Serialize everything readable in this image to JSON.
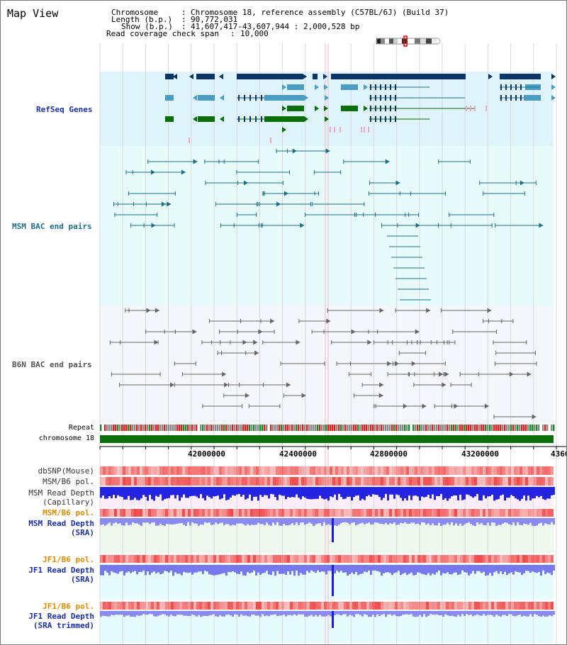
{
  "app": {
    "title": "Map View"
  },
  "header": {
    "chromosome_label": "Chromosome",
    "chromosome_value": "Chromosome 18, reference assembly (C57BL/6J) (Build 37)",
    "length_label": "Length (b.p.)",
    "length_value": "90,772,031",
    "show_label": "Show (b.p.)",
    "show_value": "41,607,417-43,607,944 : 2,000,528 bp",
    "coverage_label": "Read coverage check span",
    "coverage_value": "10,000"
  },
  "tracks": {
    "refseq": "RefSeq Genes",
    "msm_bac": "MSM BAC end pairs",
    "b6n_bac": "B6N BAC end pairs",
    "repeat": "Repeat",
    "chromosome": "chromosome 18",
    "dbsnp": "dbSNP(Mouse)",
    "msm_b6_pol_1": "MSM/B6 pol.",
    "msm_depth_cap_1": "MSM Read Depth",
    "msm_depth_cap_2": "(Capillary)",
    "msm_b6_pol_2": "MSM/B6 pol.",
    "msm_depth_sra_1": "MSM Read Depth",
    "msm_depth_sra_2": "(SRA)",
    "jf1_pol_1": "JF1/B6 pol.",
    "jf1_depth_sra_1": "JF1 Read Depth",
    "jf1_depth_sra_2": "(SRA)",
    "jf1_pol_2": "JF1/B6 pol.",
    "jf1_depth_trim_1": "JF1 Read Depth",
    "jf1_depth_trim_2": "(SRA trimmed)"
  },
  "axis": {
    "ticks": [
      "42000000",
      "42400000",
      "42800000",
      "43200000",
      "4360"
    ]
  },
  "colors": {
    "refseq_bg": "#dff3fb",
    "msm_bg": "#e8fbfb",
    "b6n_bg": "#f4f7fb",
    "gene_dark": "#0c3566",
    "gene_mid": "#4b9cc3",
    "gene_green": "#0a6e0a",
    "bac_teal": "#1b6f87",
    "bac_gray": "#666666",
    "chromosome_green": "#0a6e0a",
    "label_blue": "#1a2fa8",
    "label_teal": "#1b6f87",
    "label_orange": "#e08a00"
  }
}
